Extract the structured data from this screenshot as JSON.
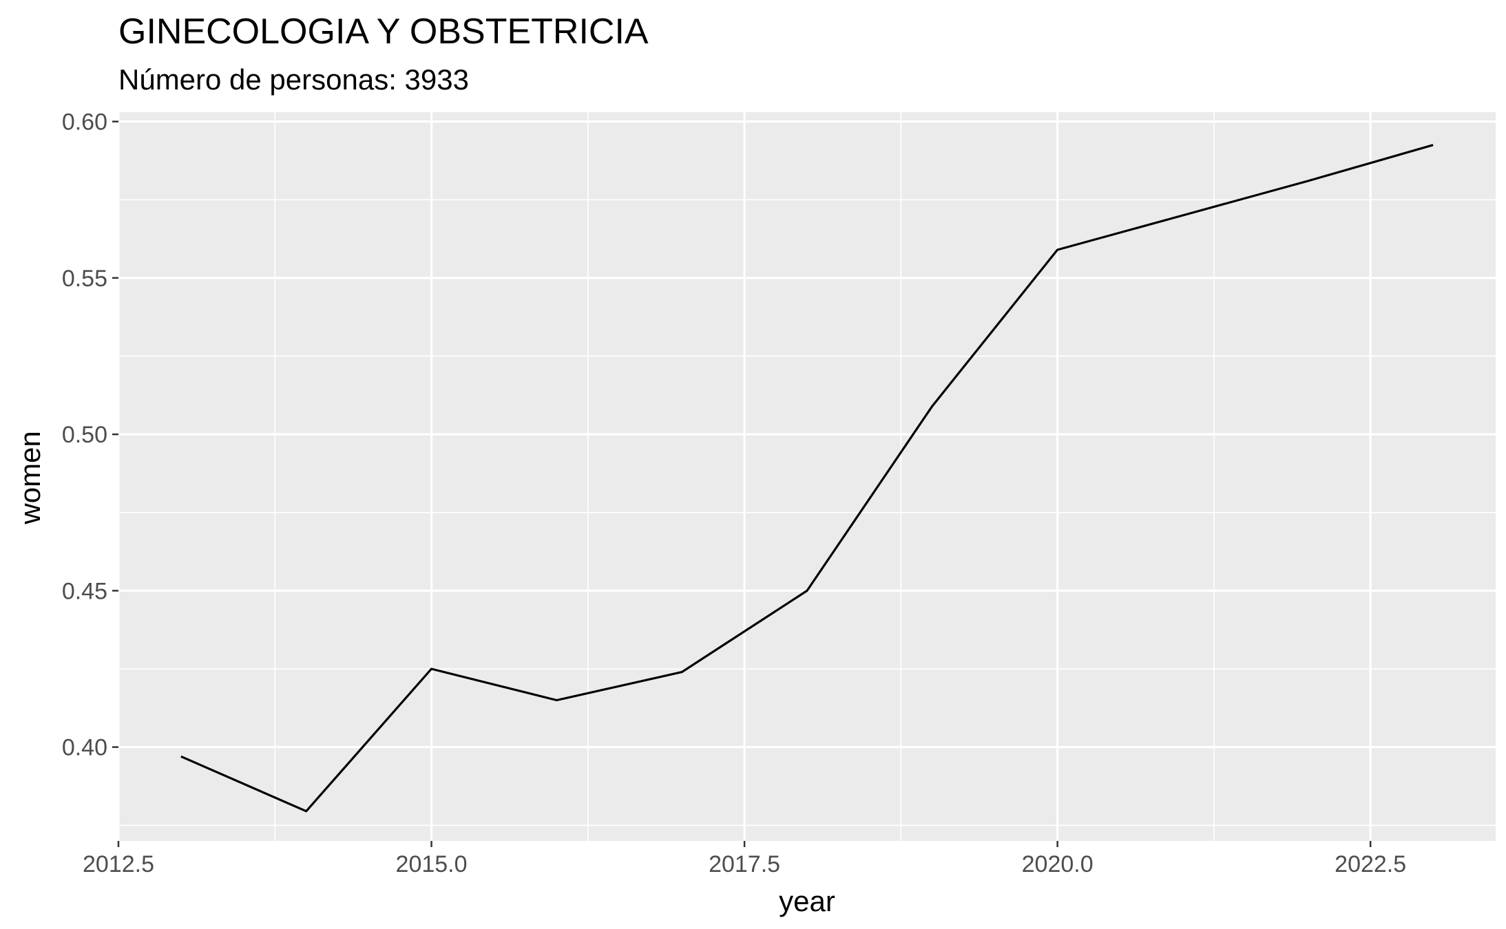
{
  "chart_data": {
    "type": "line",
    "title": "GINECOLOGIA Y OBSTETRICIA",
    "subtitle": "Número de personas: 3933",
    "xlabel": "year",
    "ylabel": "women",
    "xlim": [
      2012.5,
      2023.5
    ],
    "ylim": [
      0.37,
      0.603
    ],
    "x_ticks": [
      2012.5,
      2015.0,
      2017.5,
      2020.0,
      2022.5
    ],
    "x_tick_labels": [
      "2012.5",
      "2015.0",
      "2017.5",
      "2020.0",
      "2022.5"
    ],
    "y_ticks": [
      0.4,
      0.45,
      0.5,
      0.55,
      0.6
    ],
    "y_tick_labels": [
      "0.40",
      "0.45",
      "0.50",
      "0.55",
      "0.60"
    ],
    "grid": true,
    "series": [
      {
        "x": [
          2013,
          2014,
          2015,
          2016,
          2017,
          2018,
          2019,
          2020,
          2021,
          2022,
          2023
        ],
        "values": [
          0.397,
          0.3795,
          0.425,
          0.415,
          0.424,
          0.45,
          0.509,
          0.559,
          0.57,
          0.581,
          0.5925
        ]
      }
    ],
    "colors": {
      "panel_background": "#ebebeb",
      "grid": "#ffffff",
      "line": "#000000",
      "tick_text": "#4d4d4d",
      "axis_ticks": "#333333"
    }
  }
}
